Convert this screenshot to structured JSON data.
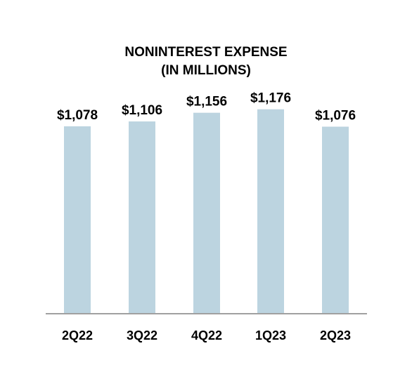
{
  "chart_data": {
    "type": "bar",
    "title_line1": "NONINTEREST EXPENSE",
    "title_line2": "(IN MILLIONS)",
    "categories": [
      "2Q22",
      "3Q22",
      "4Q22",
      "1Q23",
      "2Q23"
    ],
    "values": [
      1078,
      1106,
      1156,
      1176,
      1076
    ],
    "value_labels": [
      "$1,078",
      "$1,106",
      "$1,156",
      "$1,176",
      "$1,076"
    ],
    "ylim": [
      0,
      1195
    ],
    "grid": false,
    "legend": "none",
    "bar_color": "#bcd4e0",
    "axis_color": "#a0a0a0"
  }
}
